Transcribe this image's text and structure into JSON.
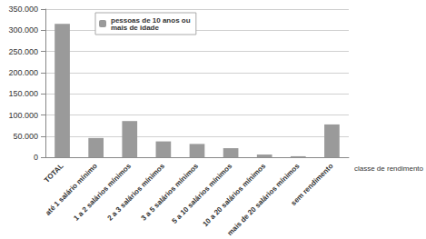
{
  "chart_data": {
    "type": "bar",
    "categories": [
      "TOTAL",
      "até 1 salário mínimo",
      "1 a 2 salários mínimos",
      "2 a 3 salários mínimos",
      "3 a 5 salários mínimos",
      "5 a 10 salários mínimos",
      "10 a 20 salários mínimos",
      "mais de 20 salários mínimos",
      "sem rendimento"
    ],
    "series": [
      {
        "name": "pessoas de 10 anos ou mais de idade",
        "color": "#9a9a9a",
        "values": [
          315000,
          46000,
          86000,
          38000,
          32000,
          22000,
          7000,
          3000,
          78000
        ]
      }
    ],
    "x_label": "classe de rendimento",
    "ylim": [
      0,
      350000
    ],
    "yticks": [
      0,
      {
        "value": 50000,
        "label": "50.000"
      },
      {
        "value": 100000,
        "label": "100.000"
      },
      {
        "value": 150000,
        "label": "150.000"
      },
      {
        "value": 200000,
        "label": "200.000"
      },
      {
        "value": 250000,
        "label": "250.000"
      },
      {
        "value": 300000,
        "label": "300.000"
      },
      {
        "value": 350000,
        "label": "350.000"
      }
    ],
    "grid": true,
    "legend": "top-left"
  }
}
